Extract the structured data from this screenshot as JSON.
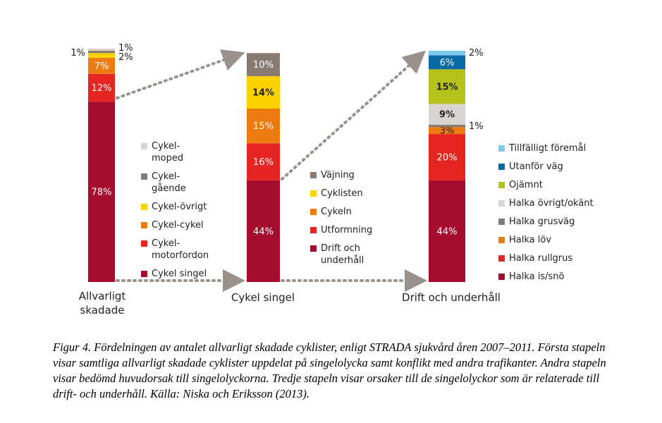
{
  "chart_data": [
    {
      "type": "stacked_bar",
      "categories": [
        "Allvarligt skadade"
      ],
      "ylim": [
        0,
        100
      ],
      "series": [
        {
          "name": "Cykel singel",
          "color": "#a50d2f",
          "values": [
            78
          ],
          "value_labels": [
            "78%"
          ]
        },
        {
          "name": "Cykel-motorfordon",
          "color": "#e52521",
          "values": [
            12
          ],
          "value_labels": [
            "12%"
          ]
        },
        {
          "name": "Cykel-cykel",
          "color": "#ec7b12",
          "values": [
            7
          ],
          "value_labels": [
            "7%"
          ]
        },
        {
          "name": "Cykel-övrigt",
          "color": "#fcd200",
          "values": [
            2
          ],
          "value_labels": [
            "2%"
          ]
        },
        {
          "name": "Cykel-gående",
          "color": "#877a71",
          "values": [
            1
          ],
          "value_labels": [
            "1%"
          ]
        },
        {
          "name": "Cykel-moped",
          "color": "#d9d4d0",
          "values": [
            1
          ],
          "value_labels": [
            "1%"
          ]
        }
      ]
    },
    {
      "type": "stacked_bar",
      "categories": [
        "Cykel singel"
      ],
      "ylim": [
        0,
        100
      ],
      "series": [
        {
          "name": "Drift och underhåll",
          "color": "#a50d2f",
          "values": [
            44
          ],
          "value_labels": [
            "44%"
          ]
        },
        {
          "name": "Utformning",
          "color": "#e52521",
          "values": [
            16
          ],
          "value_labels": [
            "16%"
          ]
        },
        {
          "name": "Cykeln",
          "color": "#ec7b12",
          "values": [
            15
          ],
          "value_labels": [
            "15%"
          ]
        },
        {
          "name": "Cyklisten",
          "color": "#fcd200",
          "values": [
            14
          ],
          "value_labels": [
            "14%"
          ]
        },
        {
          "name": "Väjning",
          "color": "#877a71",
          "values": [
            10
          ],
          "value_labels": [
            "10%"
          ]
        }
      ]
    },
    {
      "type": "stacked_bar",
      "categories": [
        "Drift och underhåll"
      ],
      "ylim": [
        0,
        100
      ],
      "series": [
        {
          "name": "Halka is/snö",
          "color": "#a50d2f",
          "values": [
            44
          ],
          "value_labels": [
            "44%"
          ]
        },
        {
          "name": "Halka rullgrus",
          "color": "#e52521",
          "values": [
            20
          ],
          "value_labels": [
            "20%"
          ]
        },
        {
          "name": "Halka löv",
          "color": "#ec7b12",
          "values": [
            3
          ],
          "value_labels": [
            "3%"
          ]
        },
        {
          "name": "Halka grusväg",
          "color": "#877a71",
          "values": [
            1
          ],
          "value_labels": [
            "1%"
          ]
        },
        {
          "name": "Halka övrigt/okänt",
          "color": "#d9d4d0",
          "values": [
            9
          ],
          "value_labels": [
            "9%"
          ]
        },
        {
          "name": "Ojämnt",
          "color": "#b5c21a",
          "values": [
            15
          ],
          "value_labels": [
            "15%"
          ]
        },
        {
          "name": "Utanför väg",
          "color": "#0a6aa6",
          "values": [
            6
          ],
          "value_labels": [
            "6%"
          ]
        },
        {
          "name": "Tillfälligt föremål",
          "color": "#7ccbea",
          "values": [
            2
          ],
          "value_labels": [
            "2%"
          ]
        }
      ]
    }
  ],
  "caption": "Figur 4. Fördelningen av antalet allvarligt skadade cyklister, enligt STRADA sjukvård åren 2007–2011. Första stapeln visar samtliga allvarligt skadade cyklister uppdelat på singelolycka samt konflikt med andra trafikanter. Andra stapeln visar bedömd huvudorsak till singelolyckorna. Tredje stapeln visar orsaker till de singelolyckor som är relaterade till drift- och underhåll. Källa: Niska och Eriksson (2013)."
}
